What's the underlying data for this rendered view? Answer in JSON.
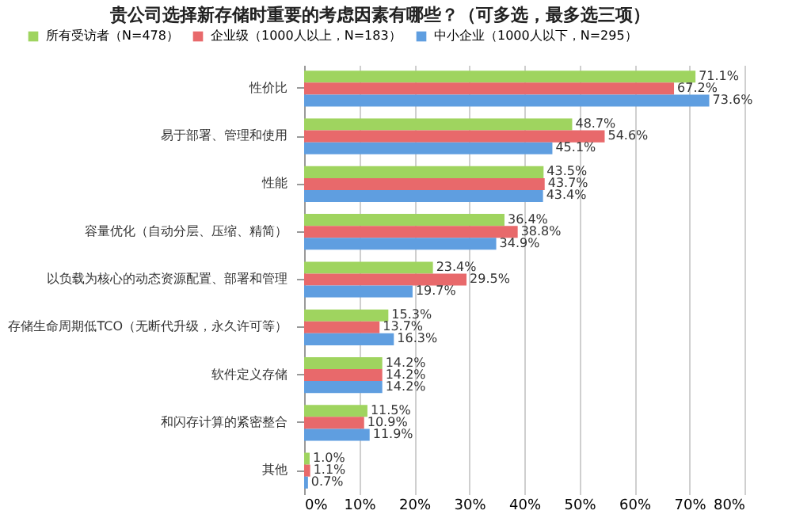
{
  "chart_data": {
    "type": "bar",
    "orientation": "horizontal",
    "title": "贵公司选择新存储时重要的考虑因素有哪些？（可多选，最多选三项）",
    "categories": [
      "性价比",
      "易于部署、管理和使用",
      "性能",
      "容量优化（自动分层、压缩、精简）",
      "以负载为核心的动态资源配置、部署和管理",
      "存储生命周期低TCO（无断代升级，永久许可等）",
      "软件定义存储",
      "和闪存计算的紧密整合",
      "其他"
    ],
    "series": [
      {
        "name": "所有受访者（N=478）",
        "color": "#9fd45f",
        "values": [
          71.1,
          48.7,
          43.5,
          36.4,
          23.4,
          15.3,
          14.2,
          11.5,
          1.0
        ],
        "value_labels": [
          "71.1%",
          "48.7%",
          "43.5%",
          "36.4%",
          "23.4%",
          "15.3%",
          "14.2%",
          "11.5%",
          "1.0%"
        ]
      },
      {
        "name": "企业级（1000人以上，N=183）",
        "color": "#e8696b",
        "values": [
          67.2,
          54.6,
          43.7,
          38.8,
          29.5,
          13.7,
          14.2,
          10.9,
          1.1
        ],
        "value_labels": [
          "67.2%",
          "54.6%",
          "43.7%",
          "38.8%",
          "29.5%",
          "13.7%",
          "14.2%",
          "10.9%",
          "1.1%"
        ]
      },
      {
        "name": "中小企业（1000人以下，N=295）",
        "color": "#5f9ee0",
        "values": [
          73.6,
          45.1,
          43.4,
          34.9,
          19.7,
          16.3,
          14.2,
          11.9,
          0.7
        ],
        "value_labels": [
          "73.6%",
          "45.1%",
          "43.4%",
          "34.9%",
          "19.7%",
          "16.3%",
          "14.2%",
          "11.9%",
          "0.7%"
        ]
      }
    ],
    "xlim": [
      0,
      80
    ],
    "xticks": [
      {
        "value": 0,
        "label": "0%"
      },
      {
        "value": 10,
        "label": "10%"
      },
      {
        "value": 20,
        "label": "20%"
      },
      {
        "value": 30,
        "label": "30%"
      },
      {
        "value": 40,
        "label": "40%"
      },
      {
        "value": 50,
        "label": "50%"
      },
      {
        "value": 60,
        "label": "60%"
      },
      {
        "value": 70,
        "label": "70%"
      },
      {
        "value": 80,
        "label": "80%"
      }
    ],
    "grid": "x",
    "legend": "top"
  }
}
